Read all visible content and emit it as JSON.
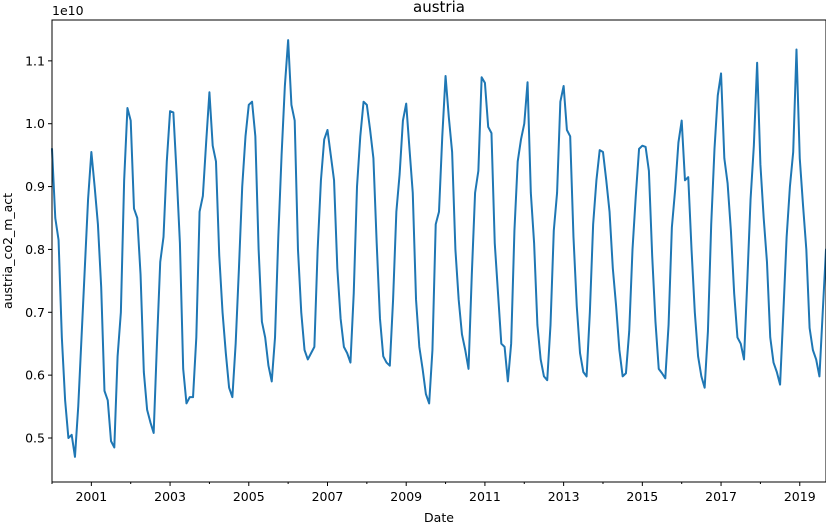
{
  "chart_data": {
    "type": "line",
    "title": "austria",
    "xlabel": "Date",
    "ylabel": "austria_co2_m_act",
    "y_offset_label": "1e10",
    "y_scale_exponent": 10,
    "xlim": [
      "2000-01",
      "2019-09"
    ],
    "ylim": [
      0.43,
      1.165
    ],
    "x_ticks": [
      "2001",
      "2003",
      "2005",
      "2007",
      "2009",
      "2011",
      "2013",
      "2015",
      "2017",
      "2019"
    ],
    "y_ticks": [
      "0.5",
      "0.6",
      "0.7",
      "0.8",
      "0.9",
      "1.0",
      "1.1"
    ],
    "y_tick_values": [
      0.5,
      0.6,
      0.7,
      0.8,
      0.9,
      1.0,
      1.1
    ],
    "grid": false,
    "legend": "none",
    "series": [
      {
        "color": "#1f77b4",
        "x": [
          "2000-01",
          "2000-02",
          "2000-03",
          "2000-04",
          "2000-05",
          "2000-06",
          "2000-07",
          "2000-08",
          "2000-09",
          "2000-10",
          "2000-11",
          "2000-12",
          "2001-01",
          "2001-02",
          "2001-03",
          "2001-04",
          "2001-05",
          "2001-06",
          "2001-07",
          "2001-08",
          "2001-09",
          "2001-10",
          "2001-11",
          "2001-12",
          "2002-01",
          "2002-02",
          "2002-03",
          "2002-04",
          "2002-05",
          "2002-06",
          "2002-07",
          "2002-08",
          "2002-09",
          "2002-10",
          "2002-11",
          "2002-12",
          "2003-01",
          "2003-02",
          "2003-03",
          "2003-04",
          "2003-05",
          "2003-06",
          "2003-07",
          "2003-08",
          "2003-09",
          "2003-10",
          "2003-11",
          "2003-12",
          "2004-01",
          "2004-02",
          "2004-03",
          "2004-04",
          "2004-05",
          "2004-06",
          "2004-07",
          "2004-08",
          "2004-09",
          "2004-10",
          "2004-11",
          "2004-12",
          "2005-01",
          "2005-02",
          "2005-03",
          "2005-04",
          "2005-05",
          "2005-06",
          "2005-07",
          "2005-08",
          "2005-09",
          "2005-10",
          "2005-11",
          "2005-12",
          "2006-01",
          "2006-02",
          "2006-03",
          "2006-04",
          "2006-05",
          "2006-06",
          "2006-07",
          "2006-08",
          "2006-09",
          "2006-10",
          "2006-11",
          "2006-12",
          "2007-01",
          "2007-02",
          "2007-03",
          "2007-04",
          "2007-05",
          "2007-06",
          "2007-07",
          "2007-08",
          "2007-09",
          "2007-10",
          "2007-11",
          "2007-12",
          "2008-01",
          "2008-02",
          "2008-03",
          "2008-04",
          "2008-05",
          "2008-06",
          "2008-07",
          "2008-08",
          "2008-09",
          "2008-10",
          "2008-11",
          "2008-12",
          "2009-01",
          "2009-02",
          "2009-03",
          "2009-04",
          "2009-05",
          "2009-06",
          "2009-07",
          "2009-08",
          "2009-09",
          "2009-10",
          "2009-11",
          "2009-12",
          "2010-01",
          "2010-02",
          "2010-03",
          "2010-04",
          "2010-05",
          "2010-06",
          "2010-07",
          "2010-08",
          "2010-09",
          "2010-10",
          "2010-11",
          "2010-12",
          "2011-01",
          "2011-02",
          "2011-03",
          "2011-04",
          "2011-05",
          "2011-06",
          "2011-07",
          "2011-08",
          "2011-09",
          "2011-10",
          "2011-11",
          "2011-12",
          "2012-01",
          "2012-02",
          "2012-03",
          "2012-04",
          "2012-05",
          "2012-06",
          "2012-07",
          "2012-08",
          "2012-09",
          "2012-10",
          "2012-11",
          "2012-12",
          "2013-01",
          "2013-02",
          "2013-03",
          "2013-04",
          "2013-05",
          "2013-06",
          "2013-07",
          "2013-08",
          "2013-09",
          "2013-10",
          "2013-11",
          "2013-12",
          "2014-01",
          "2014-02",
          "2014-03",
          "2014-04",
          "2014-05",
          "2014-06",
          "2014-07",
          "2014-08",
          "2014-09",
          "2014-10",
          "2014-11",
          "2014-12",
          "2015-01",
          "2015-02",
          "2015-03",
          "2015-04",
          "2015-05",
          "2015-06",
          "2015-07",
          "2015-08",
          "2015-09",
          "2015-10",
          "2015-11",
          "2015-12",
          "2016-01",
          "2016-02",
          "2016-03",
          "2016-04",
          "2016-05",
          "2016-06",
          "2016-07",
          "2016-08",
          "2016-09",
          "2016-10",
          "2016-11",
          "2016-12",
          "2017-01",
          "2017-02",
          "2017-03",
          "2017-04",
          "2017-05",
          "2017-06",
          "2017-07",
          "2017-08",
          "2017-09",
          "2017-10",
          "2017-11",
          "2017-12",
          "2018-01",
          "2018-02",
          "2018-03",
          "2018-04",
          "2018-05",
          "2018-06",
          "2018-07",
          "2018-08",
          "2018-09",
          "2018-10",
          "2018-11",
          "2018-12",
          "2019-01",
          "2019-02",
          "2019-03",
          "2019-04",
          "2019-05",
          "2019-06",
          "2019-07",
          "2019-08",
          "2019-09"
        ],
        "y": [
          0.96,
          0.85,
          0.815,
          0.66,
          0.56,
          0.5,
          0.505,
          0.47,
          0.55,
          0.66,
          0.77,
          0.88,
          0.955,
          0.9,
          0.84,
          0.74,
          0.575,
          0.56,
          0.495,
          0.485,
          0.63,
          0.7,
          0.91,
          1.025,
          1.005,
          0.865,
          0.85,
          0.76,
          0.605,
          0.545,
          0.525,
          0.508,
          0.65,
          0.78,
          0.82,
          0.94,
          1.02,
          1.018,
          0.92,
          0.81,
          0.61,
          0.555,
          0.565,
          0.565,
          0.66,
          0.86,
          0.885,
          0.97,
          1.05,
          0.965,
          0.94,
          0.79,
          0.7,
          0.635,
          0.58,
          0.565,
          0.65,
          0.77,
          0.9,
          0.98,
          1.03,
          1.035,
          0.98,
          0.8,
          0.685,
          0.66,
          0.615,
          0.59,
          0.66,
          0.82,
          0.95,
          1.06,
          1.133,
          1.03,
          1.005,
          0.8,
          0.7,
          0.64,
          0.625,
          0.635,
          0.645,
          0.8,
          0.91,
          0.975,
          0.99,
          0.95,
          0.91,
          0.77,
          0.69,
          0.645,
          0.635,
          0.62,
          0.73,
          0.9,
          0.98,
          1.035,
          1.03,
          0.99,
          0.945,
          0.81,
          0.69,
          0.63,
          0.62,
          0.615,
          0.72,
          0.86,
          0.92,
          1.005,
          1.032,
          0.96,
          0.89,
          0.72,
          0.645,
          0.61,
          0.57,
          0.555,
          0.64,
          0.84,
          0.86,
          0.98,
          1.076,
          1.01,
          0.955,
          0.8,
          0.72,
          0.665,
          0.64,
          0.61,
          0.76,
          0.89,
          0.925,
          1.074,
          1.065,
          0.995,
          0.985,
          0.81,
          0.73,
          0.65,
          0.645,
          0.59,
          0.65,
          0.83,
          0.94,
          0.975,
          1.0,
          1.066,
          0.89,
          0.81,
          0.68,
          0.625,
          0.598,
          0.592,
          0.68,
          0.83,
          0.89,
          1.035,
          1.06,
          0.99,
          0.98,
          0.82,
          0.71,
          0.635,
          0.605,
          0.598,
          0.7,
          0.84,
          0.91,
          0.958,
          0.955,
          0.91,
          0.86,
          0.77,
          0.71,
          0.64,
          0.598,
          0.603,
          0.67,
          0.8,
          0.885,
          0.96,
          0.965,
          0.963,
          0.925,
          0.79,
          0.685,
          0.61,
          0.603,
          0.595,
          0.68,
          0.835,
          0.895,
          0.97,
          1.005,
          0.91,
          0.915,
          0.8,
          0.7,
          0.63,
          0.598,
          0.58,
          0.67,
          0.84,
          0.96,
          1.045,
          1.08,
          0.945,
          0.905,
          0.83,
          0.73,
          0.66,
          0.65,
          0.625,
          0.75,
          0.88,
          0.965,
          1.097,
          0.935,
          0.85,
          0.78,
          0.66,
          0.62,
          0.605,
          0.585,
          0.7,
          0.82,
          0.9,
          0.955,
          1.118,
          0.945,
          0.87,
          0.8,
          0.675,
          0.64,
          0.625,
          0.598,
          0.7,
          0.8
        ]
      }
    ]
  }
}
